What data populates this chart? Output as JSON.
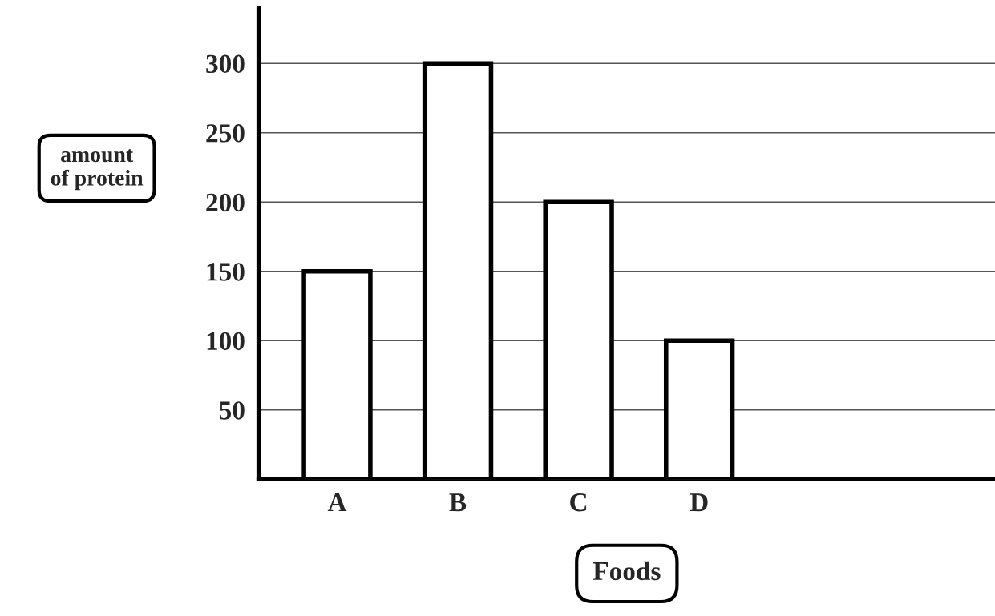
{
  "chart_data": {
    "type": "bar",
    "xlabel": "Foods",
    "ylabel": "amount\nof protein",
    "categories": [
      "A",
      "B",
      "C",
      "D"
    ],
    "values": [
      150,
      300,
      200,
      100
    ],
    "color": "#ffffff",
    "ylim": [
      0,
      340
    ],
    "yticks": [
      50,
      100,
      150,
      200,
      250,
      300
    ],
    "grid": "y"
  }
}
